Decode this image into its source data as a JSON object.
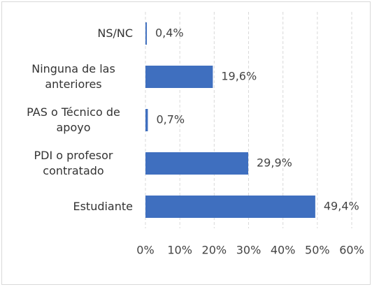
{
  "chart_data": {
    "type": "bar",
    "orientation": "horizontal",
    "categories": [
      "NS/NC",
      "Ninguna de las anteriores",
      "PAS o Técnico de apoyo",
      "PDI o profesor contratado",
      "Estudiante"
    ],
    "values": [
      0.4,
      19.6,
      0.7,
      29.9,
      49.4
    ],
    "value_labels": [
      "0,4%",
      "19,6%",
      "0,7%",
      "29,9%",
      "49,4%"
    ],
    "color": "#3f6fbf",
    "xlim": [
      0,
      60
    ],
    "xticks": [
      {
        "value": 0,
        "label": "0%"
      },
      {
        "value": 10,
        "label": "10%"
      },
      {
        "value": 20,
        "label": "20%"
      },
      {
        "value": 30,
        "label": "30%"
      },
      {
        "value": 40,
        "label": "40%"
      },
      {
        "value": 50,
        "label": "50%"
      },
      {
        "value": 60,
        "label": "60%"
      }
    ],
    "grid": true
  }
}
